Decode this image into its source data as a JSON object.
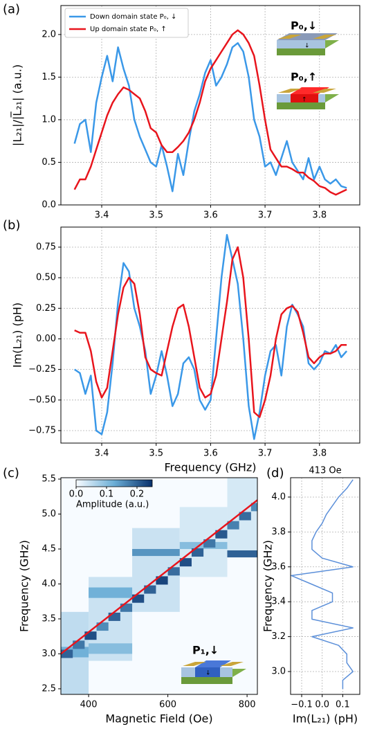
{
  "chart_data": [
    {
      "type": "line",
      "panel_label": "(a)",
      "ylabel": "|L₂₁|/|L̅₂₁| (a.u.)",
      "x": [
        3.35,
        3.36,
        3.37,
        3.38,
        3.39,
        3.4,
        3.41,
        3.42,
        3.43,
        3.44,
        3.45,
        3.46,
        3.47,
        3.48,
        3.49,
        3.5,
        3.51,
        3.52,
        3.53,
        3.54,
        3.55,
        3.56,
        3.57,
        3.58,
        3.59,
        3.6,
        3.61,
        3.62,
        3.63,
        3.64,
        3.65,
        3.66,
        3.67,
        3.68,
        3.69,
        3.7,
        3.71,
        3.72,
        3.73,
        3.74,
        3.75,
        3.76,
        3.77,
        3.78,
        3.79,
        3.8,
        3.81,
        3.82,
        3.83,
        3.84,
        3.85
      ],
      "xlim": [
        3.325,
        3.874
      ],
      "xticks": [
        3.4,
        3.5,
        3.6,
        3.7,
        3.8
      ],
      "ylim": [
        0,
        2.34
      ],
      "yticks": [
        {
          "value": 0,
          "label": "0.0"
        },
        0.5,
        {
          "value": 1,
          "label": "1.0"
        },
        1.5,
        {
          "value": 2,
          "label": "2.0"
        }
      ],
      "grid": true,
      "legend": "upper left",
      "series": [
        {
          "name": "Down domain state P₀, ↓",
          "color": "#3a98e8",
          "values": [
            0.72,
            0.95,
            1.0,
            0.62,
            1.2,
            1.5,
            1.75,
            1.45,
            1.85,
            1.6,
            1.4,
            1.0,
            0.8,
            0.65,
            0.5,
            0.45,
            0.7,
            0.45,
            0.16,
            0.6,
            0.35,
            0.75,
            1.1,
            1.3,
            1.55,
            1.7,
            1.4,
            1.5,
            1.65,
            1.85,
            1.9,
            1.8,
            1.5,
            1.0,
            0.8,
            0.45,
            0.5,
            0.35,
            0.55,
            0.75,
            0.5,
            0.4,
            0.3,
            0.55,
            0.3,
            0.45,
            0.3,
            0.25,
            0.3,
            0.22,
            0.2
          ]
        },
        {
          "name": "Up domain state P₀, ↑",
          "color": "#e8141c",
          "values": [
            0.18,
            0.3,
            0.3,
            0.45,
            0.65,
            0.85,
            1.05,
            1.2,
            1.3,
            1.38,
            1.35,
            1.3,
            1.25,
            1.1,
            0.9,
            0.85,
            0.7,
            0.62,
            0.62,
            0.68,
            0.75,
            0.85,
            1.0,
            1.2,
            1.45,
            1.6,
            1.7,
            1.8,
            1.9,
            2.0,
            2.05,
            2.0,
            1.9,
            1.75,
            1.4,
            1.0,
            0.65,
            0.55,
            0.45,
            0.45,
            0.42,
            0.38,
            0.38,
            0.32,
            0.28,
            0.22,
            0.2,
            0.15,
            0.12,
            0.15,
            0.18
          ]
        }
      ],
      "inset_labels": [
        "P₀,↓",
        "P₀,↑"
      ]
    },
    {
      "type": "line",
      "panel_label": "(b)",
      "xlabel": "Frequency (GHz)",
      "ylabel": "Im(L₂₁) (pH)",
      "x": [
        3.35,
        3.36,
        3.37,
        3.38,
        3.39,
        3.4,
        3.41,
        3.42,
        3.43,
        3.44,
        3.45,
        3.46,
        3.47,
        3.48,
        3.49,
        3.5,
        3.51,
        3.52,
        3.53,
        3.54,
        3.55,
        3.56,
        3.57,
        3.58,
        3.59,
        3.6,
        3.61,
        3.62,
        3.63,
        3.64,
        3.65,
        3.66,
        3.67,
        3.68,
        3.69,
        3.7,
        3.71,
        3.72,
        3.73,
        3.74,
        3.75,
        3.76,
        3.77,
        3.78,
        3.79,
        3.8,
        3.81,
        3.82,
        3.83,
        3.84,
        3.85
      ],
      "xlim": [
        3.325,
        3.874
      ],
      "xticks": [
        3.4,
        3.5,
        3.6,
        3.7,
        3.8
      ],
      "ylim": [
        -0.852,
        0.914
      ],
      "yticks": [
        {
          "value": -0.75,
          "label": "−0.75"
        },
        {
          "value": -0.5,
          "label": "−0.50"
        },
        {
          "value": -0.25,
          "label": "−0.25"
        },
        {
          "value": 0,
          "label": "0.00"
        },
        0.25,
        {
          "value": 0.5,
          "label": "0.50"
        },
        0.75
      ],
      "grid": true,
      "series": [
        {
          "color": "#3a98e8",
          "values": [
            -0.25,
            -0.28,
            -0.45,
            -0.3,
            -0.75,
            -0.78,
            -0.6,
            -0.2,
            0.3,
            0.62,
            0.55,
            0.25,
            0.1,
            -0.1,
            -0.45,
            -0.3,
            -0.1,
            -0.3,
            -0.55,
            -0.45,
            -0.2,
            -0.15,
            -0.25,
            -0.5,
            -0.58,
            -0.5,
            0.0,
            0.5,
            0.85,
            0.65,
            0.45,
            0.0,
            -0.55,
            -0.82,
            -0.6,
            -0.3,
            -0.1,
            -0.05,
            -0.3,
            0.1,
            0.28,
            0.2,
            0.1,
            -0.2,
            -0.25,
            -0.2,
            -0.1,
            -0.12,
            -0.05,
            -0.15,
            -0.1
          ]
        },
        {
          "color": "#e8141c",
          "values": [
            0.07,
            0.05,
            0.05,
            -0.1,
            -0.35,
            -0.48,
            -0.4,
            -0.1,
            0.2,
            0.42,
            0.5,
            0.45,
            0.2,
            -0.15,
            -0.25,
            -0.28,
            -0.3,
            -0.1,
            0.1,
            0.25,
            0.28,
            0.1,
            -0.15,
            -0.4,
            -0.48,
            -0.45,
            -0.3,
            0.0,
            0.3,
            0.65,
            0.75,
            0.5,
            0.0,
            -0.6,
            -0.64,
            -0.5,
            -0.3,
            0.0,
            0.2,
            0.25,
            0.27,
            0.22,
            0.05,
            -0.15,
            -0.2,
            -0.15,
            -0.12,
            -0.12,
            -0.1,
            -0.05,
            -0.05
          ]
        }
      ]
    },
    {
      "type": "heatmap",
      "panel_label": "(c)",
      "xlabel": "Magnetic Field (Oe)",
      "ylabel": "Frequency (GHz)",
      "xlim": [
        330,
        826
      ],
      "xticks": [
        400,
        600,
        800
      ],
      "ylim": [
        2.42,
        5.52
      ],
      "yticks": [
        2.5,
        {
          "value": 3,
          "label": "3.0"
        },
        3.5,
        {
          "value": 4,
          "label": "4.0"
        },
        4.5,
        {
          "value": 5,
          "label": "5.0"
        },
        5.5
      ],
      "blocks": [
        {
          "field": [
            330,
            400
          ],
          "freq": [
            2.42,
            3.6
          ],
          "amplitude": 0.05
        },
        {
          "field": [
            400,
            510
          ],
          "freq": [
            2.9,
            4.1
          ],
          "amplitude": 0.04
        },
        {
          "field": [
            510,
            630
          ],
          "freq": [
            3.6,
            4.8
          ],
          "amplitude": 0.04
        },
        {
          "field": [
            630,
            750
          ],
          "freq": [
            4.1,
            5.1
          ],
          "amplitude": 0.03
        },
        {
          "field": [
            750,
            826
          ],
          "freq": [
            4.4,
            5.6
          ],
          "amplitude": 0.03
        },
        {
          "field": [
            330,
            400
          ],
          "freq": [
            2.95,
            3.1
          ],
          "amplitude": 0.12
        },
        {
          "field": [
            400,
            510
          ],
          "freq": [
            3.0,
            3.15
          ],
          "amplitude": 0.1
        },
        {
          "field": [
            400,
            510
          ],
          "freq": [
            3.8,
            3.95
          ],
          "amplitude": 0.12
        },
        {
          "field": [
            510,
            630
          ],
          "freq": [
            4.4,
            4.5
          ],
          "amplitude": 0.15
        },
        {
          "field": [
            630,
            750
          ],
          "freq": [
            4.5,
            4.6
          ],
          "amplitude": 0.1
        },
        {
          "field": [
            750,
            826
          ],
          "freq": [
            4.38,
            4.48
          ],
          "amplitude": 0.2
        }
      ],
      "ridge": {
        "x": [
          330,
          360,
          390,
          420,
          450,
          480,
          510,
          540,
          570,
          600,
          630,
          660,
          690,
          720,
          750,
          780,
          810
        ],
        "y": [
          3.0,
          3.13,
          3.26,
          3.39,
          3.53,
          3.66,
          3.79,
          3.92,
          4.05,
          4.18,
          4.31,
          4.45,
          4.58,
          4.71,
          4.84,
          4.97,
          5.1
        ],
        "values": [
          0.2,
          0.18,
          0.22,
          0.16,
          0.2,
          0.18,
          0.22,
          0.2,
          0.23,
          0.19,
          0.22,
          0.2,
          0.18,
          0.21,
          0.17,
          0.19,
          0.16
        ]
      },
      "fit": {
        "x": [
          330,
          826
        ],
        "y": [
          3.0,
          5.2
        ],
        "color": "#e8141c"
      },
      "colorbar": {
        "label": "Amplitude (a.u.)",
        "clim": [
          0,
          0.25
        ],
        "ticks": [
          {
            "value": 0,
            "label": "0.0"
          },
          0.1,
          0.2
        ]
      },
      "inset_label": "P₁,↓"
    },
    {
      "type": "line",
      "panel_label": "(d)",
      "title": "413 Oe",
      "xlabel": "Im(L₂₁) (pH)",
      "ylabel": "Frequency (GHz)",
      "y": [
        4.1,
        4.05,
        4.0,
        3.95,
        3.9,
        3.85,
        3.8,
        3.75,
        3.7,
        3.65,
        3.6,
        3.55,
        3.5,
        3.45,
        3.4,
        3.35,
        3.3,
        3.25,
        3.2,
        3.15,
        3.1,
        3.05,
        3.0,
        2.95,
        2.9
      ],
      "xlim": [
        -0.154,
        0.183
      ],
      "xticks": [
        {
          "value": -0.1,
          "label": "−0.1"
        },
        {
          "value": 0,
          "label": "0.0"
        },
        0.1
      ],
      "ylim": [
        2.869,
        4.111
      ],
      "yticks": [
        {
          "value": 3,
          "label": "3.0"
        },
        3.2,
        3.4,
        3.6,
        3.8,
        {
          "value": 4,
          "label": "4.0"
        }
      ],
      "grid": true,
      "series": [
        {
          "color": "#5b8fd9",
          "values": [
            0.15,
            0.12,
            0.08,
            0.05,
            0.02,
            0.0,
            -0.03,
            -0.05,
            -0.05,
            0.0,
            0.15,
            -0.15,
            -0.05,
            0.05,
            0.05,
            -0.05,
            -0.05,
            0.15,
            -0.05,
            0.08,
            0.12,
            0.12,
            0.15,
            0.1,
            0.1
          ]
        }
      ]
    }
  ]
}
